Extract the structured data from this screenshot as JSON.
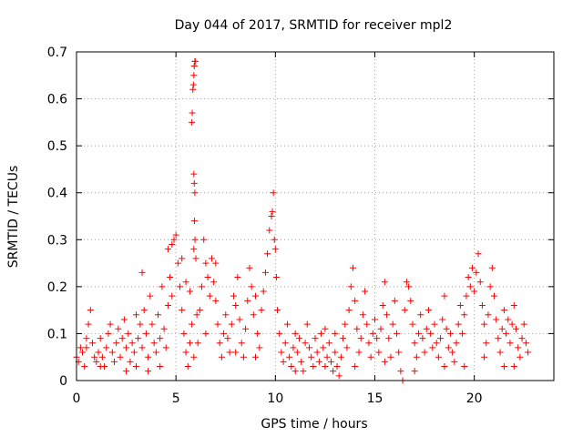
{
  "chart_data": {
    "type": "scatter",
    "title": "Day 044 of 2017, SRMTID for receiver mpl2",
    "xlabel": "GPS time / hours",
    "ylabel": "SRMTID / TECUs",
    "xlim": [
      0,
      24
    ],
    "ylim": [
      0,
      0.7
    ],
    "xticks": [
      0,
      5,
      10,
      15,
      20
    ],
    "yticks": [
      0,
      0.1,
      0.2,
      0.3,
      0.4,
      0.5,
      0.6,
      0.7
    ],
    "xtick_labels": [
      "0",
      "5",
      "10",
      "15",
      "20"
    ],
    "ytick_labels": [
      "0",
      "0.1",
      "0.2",
      "0.3",
      "0.4",
      "0.5",
      "0.6",
      "0.7"
    ],
    "grid": true,
    "marker": "+",
    "color": "#ff0000",
    "series": [
      {
        "name": "SRMTID",
        "points": [
          [
            0.0,
            0.05
          ],
          [
            0.1,
            0.04
          ],
          [
            0.2,
            0.07
          ],
          [
            0.3,
            0.06
          ],
          [
            0.4,
            0.03
          ],
          [
            0.5,
            0.09
          ],
          [
            0.6,
            0.12
          ],
          [
            0.7,
            0.15
          ],
          [
            0.8,
            0.08
          ],
          [
            0.9,
            0.05
          ],
          [
            1.0,
            0.04
          ],
          [
            1.1,
            0.06
          ],
          [
            1.2,
            0.09
          ],
          [
            1.3,
            0.05
          ],
          [
            1.4,
            0.03
          ],
          [
            1.5,
            0.07
          ],
          [
            1.6,
            0.1
          ],
          [
            1.7,
            0.12
          ],
          [
            1.8,
            0.06
          ],
          [
            1.9,
            0.04
          ],
          [
            2.0,
            0.08
          ],
          [
            2.1,
            0.11
          ],
          [
            2.2,
            0.05
          ],
          [
            2.3,
            0.09
          ],
          [
            2.4,
            0.13
          ],
          [
            2.5,
            0.07
          ],
          [
            2.6,
            0.1
          ],
          [
            2.7,
            0.04
          ],
          [
            2.8,
            0.08
          ],
          [
            2.9,
            0.06
          ],
          [
            3.0,
            0.03
          ],
          [
            3.1,
            0.09
          ],
          [
            3.2,
            0.12
          ],
          [
            3.3,
            0.07
          ],
          [
            3.4,
            0.15
          ],
          [
            3.5,
            0.1
          ],
          [
            3.6,
            0.05
          ],
          [
            3.7,
            0.18
          ],
          [
            3.8,
            0.12
          ],
          [
            3.9,
            0.08
          ],
          [
            4.0,
            0.06
          ],
          [
            4.1,
            0.14
          ],
          [
            4.2,
            0.09
          ],
          [
            4.3,
            0.2
          ],
          [
            4.4,
            0.11
          ],
          [
            4.5,
            0.07
          ],
          [
            4.6,
            0.16
          ],
          [
            4.7,
            0.22
          ],
          [
            4.8,
            0.29
          ],
          [
            4.9,
            0.3
          ],
          [
            5.0,
            0.31
          ],
          [
            5.1,
            0.25
          ],
          [
            5.2,
            0.2
          ],
          [
            5.3,
            0.15
          ],
          [
            5.4,
            0.1
          ],
          [
            5.5,
            0.06
          ],
          [
            5.6,
            0.03
          ],
          [
            5.7,
            0.08
          ],
          [
            5.8,
            0.12
          ],
          [
            5.9,
            0.05
          ],
          [
            3.3,
            0.23
          ],
          [
            5.3,
            0.26
          ],
          [
            5.5,
            0.21
          ],
          [
            5.7,
            0.19
          ],
          [
            4.6,
            0.28
          ],
          [
            4.8,
            0.18
          ],
          [
            5.8,
            0.55
          ],
          [
            5.82,
            0.57
          ],
          [
            5.85,
            0.62
          ],
          [
            5.88,
            0.63
          ],
          [
            5.9,
            0.65
          ],
          [
            5.92,
            0.67
          ],
          [
            5.95,
            0.68
          ],
          [
            5.97,
            0.68
          ],
          [
            5.9,
            0.44
          ],
          [
            5.92,
            0.42
          ],
          [
            5.95,
            0.4
          ],
          [
            5.93,
            0.34
          ],
          [
            5.96,
            0.3
          ],
          [
            5.9,
            0.28
          ],
          [
            6.0,
            0.26
          ],
          [
            6.05,
            0.14
          ],
          [
            6.1,
            0.08
          ],
          [
            6.2,
            0.15
          ],
          [
            6.3,
            0.2
          ],
          [
            6.4,
            0.3
          ],
          [
            6.5,
            0.25
          ],
          [
            6.6,
            0.22
          ],
          [
            6.7,
            0.18
          ],
          [
            6.8,
            0.26
          ],
          [
            6.9,
            0.21
          ],
          [
            7.0,
            0.17
          ],
          [
            7.1,
            0.12
          ],
          [
            7.2,
            0.08
          ],
          [
            7.3,
            0.05
          ],
          [
            7.4,
            0.1
          ],
          [
            7.5,
            0.14
          ],
          [
            7.6,
            0.09
          ],
          [
            7.7,
            0.06
          ],
          [
            7.8,
            0.12
          ],
          [
            7.9,
            0.18
          ],
          [
            8.0,
            0.16
          ],
          [
            8.1,
            0.22
          ],
          [
            8.2,
            0.13
          ],
          [
            8.3,
            0.08
          ],
          [
            8.4,
            0.05
          ],
          [
            8.5,
            0.11
          ],
          [
            8.6,
            0.17
          ],
          [
            8.7,
            0.24
          ],
          [
            8.8,
            0.2
          ],
          [
            8.9,
            0.14
          ],
          [
            9.0,
            0.18
          ],
          [
            9.1,
            0.1
          ],
          [
            9.2,
            0.07
          ],
          [
            9.3,
            0.15
          ],
          [
            9.4,
            0.19
          ],
          [
            9.5,
            0.23
          ],
          [
            9.6,
            0.27
          ],
          [
            9.7,
            0.32
          ],
          [
            9.8,
            0.35
          ],
          [
            9.85,
            0.36
          ],
          [
            9.9,
            0.4
          ],
          [
            9.95,
            0.3
          ],
          [
            10.0,
            0.28
          ],
          [
            10.05,
            0.22
          ],
          [
            10.1,
            0.15
          ],
          [
            10.2,
            0.1
          ],
          [
            10.3,
            0.06
          ],
          [
            10.4,
            0.04
          ],
          [
            10.5,
            0.08
          ],
          [
            10.6,
            0.12
          ],
          [
            10.7,
            0.05
          ],
          [
            10.8,
            0.03
          ],
          [
            10.9,
            0.07
          ],
          [
            11.0,
            0.1
          ],
          [
            11.1,
            0.06
          ],
          [
            11.2,
            0.09
          ],
          [
            11.3,
            0.04
          ],
          [
            11.4,
            0.02
          ],
          [
            11.5,
            0.08
          ],
          [
            11.6,
            0.12
          ],
          [
            11.7,
            0.07
          ],
          [
            11.8,
            0.05
          ],
          [
            11.9,
            0.03
          ],
          [
            12.0,
            0.09
          ],
          [
            12.1,
            0.06
          ],
          [
            12.2,
            0.04
          ],
          [
            12.3,
            0.1
          ],
          [
            12.4,
            0.07
          ],
          [
            12.5,
            0.03
          ],
          [
            12.6,
            0.05
          ],
          [
            12.7,
            0.08
          ],
          [
            12.8,
            0.04
          ],
          [
            12.9,
            0.02
          ],
          [
            13.0,
            0.06
          ],
          [
            13.1,
            0.03
          ],
          [
            13.2,
            0.01
          ],
          [
            13.3,
            0.05
          ],
          [
            13.4,
            0.09
          ],
          [
            13.5,
            0.12
          ],
          [
            13.6,
            0.07
          ],
          [
            13.7,
            0.15
          ],
          [
            13.8,
            0.2
          ],
          [
            13.9,
            0.24
          ],
          [
            14.0,
            0.17
          ],
          [
            14.1,
            0.11
          ],
          [
            14.2,
            0.06
          ],
          [
            14.3,
            0.09
          ],
          [
            14.4,
            0.14
          ],
          [
            14.5,
            0.19
          ],
          [
            14.6,
            0.12
          ],
          [
            14.7,
            0.08
          ],
          [
            14.8,
            0.05
          ],
          [
            14.9,
            0.1
          ],
          [
            15.0,
            0.13
          ],
          [
            15.1,
            0.09
          ],
          [
            15.2,
            0.06
          ],
          [
            15.3,
            0.11
          ],
          [
            15.4,
            0.16
          ],
          [
            15.5,
            0.21
          ],
          [
            15.6,
            0.14
          ],
          [
            15.7,
            0.09
          ],
          [
            15.8,
            0.05
          ],
          [
            15.9,
            0.12
          ],
          [
            16.0,
            0.17
          ],
          [
            16.1,
            0.1
          ],
          [
            16.2,
            0.06
          ],
          [
            16.3,
            0.02
          ],
          [
            16.4,
            0.0
          ],
          [
            16.5,
            0.15
          ],
          [
            16.6,
            0.21
          ],
          [
            16.7,
            0.2
          ],
          [
            16.8,
            0.17
          ],
          [
            16.9,
            0.12
          ],
          [
            17.0,
            0.08
          ],
          [
            17.1,
            0.05
          ],
          [
            17.2,
            0.1
          ],
          [
            17.3,
            0.14
          ],
          [
            17.4,
            0.09
          ],
          [
            17.5,
            0.06
          ],
          [
            17.6,
            0.11
          ],
          [
            17.7,
            0.15
          ],
          [
            17.8,
            0.1
          ],
          [
            17.9,
            0.07
          ],
          [
            18.0,
            0.12
          ],
          [
            18.1,
            0.08
          ],
          [
            18.2,
            0.05
          ],
          [
            18.3,
            0.09
          ],
          [
            18.4,
            0.13
          ],
          [
            18.5,
            0.18
          ],
          [
            18.6,
            0.11
          ],
          [
            18.7,
            0.07
          ],
          [
            18.8,
            0.1
          ],
          [
            18.9,
            0.06
          ],
          [
            19.0,
            0.04
          ],
          [
            19.1,
            0.08
          ],
          [
            19.2,
            0.12
          ],
          [
            19.3,
            0.16
          ],
          [
            19.4,
            0.1
          ],
          [
            19.5,
            0.14
          ],
          [
            19.6,
            0.18
          ],
          [
            19.7,
            0.22
          ],
          [
            19.8,
            0.2
          ],
          [
            19.9,
            0.24
          ],
          [
            20.0,
            0.19
          ],
          [
            20.1,
            0.23
          ],
          [
            20.2,
            0.27
          ],
          [
            20.3,
            0.21
          ],
          [
            20.4,
            0.16
          ],
          [
            20.5,
            0.12
          ],
          [
            20.6,
            0.08
          ],
          [
            20.7,
            0.14
          ],
          [
            20.8,
            0.2
          ],
          [
            20.9,
            0.24
          ],
          [
            21.0,
            0.18
          ],
          [
            21.1,
            0.13
          ],
          [
            21.2,
            0.09
          ],
          [
            21.3,
            0.06
          ],
          [
            21.4,
            0.11
          ],
          [
            21.5,
            0.15
          ],
          [
            21.6,
            0.1
          ],
          [
            21.7,
            0.13
          ],
          [
            21.8,
            0.08
          ],
          [
            21.9,
            0.12
          ],
          [
            22.0,
            0.16
          ],
          [
            22.1,
            0.11
          ],
          [
            22.2,
            0.07
          ],
          [
            22.3,
            0.05
          ],
          [
            22.4,
            0.09
          ],
          [
            22.5,
            0.12
          ],
          [
            22.6,
            0.08
          ],
          [
            22.7,
            0.06
          ],
          [
            0.5,
            0.07
          ],
          [
            1.2,
            0.03
          ],
          [
            2.5,
            0.02
          ],
          [
            3.0,
            0.14
          ],
          [
            3.6,
            0.02
          ],
          [
            4.2,
            0.03
          ],
          [
            6.5,
            0.1
          ],
          [
            7.0,
            0.25
          ],
          [
            8.0,
            0.06
          ],
          [
            9.0,
            0.05
          ],
          [
            11.0,
            0.02
          ],
          [
            12.5,
            0.11
          ],
          [
            13.0,
            0.1
          ],
          [
            14.0,
            0.03
          ],
          [
            15.5,
            0.04
          ],
          [
            17.0,
            0.02
          ],
          [
            18.5,
            0.03
          ],
          [
            19.5,
            0.03
          ],
          [
            20.5,
            0.05
          ],
          [
            21.5,
            0.03
          ],
          [
            22.0,
            0.03
          ]
        ]
      }
    ]
  }
}
